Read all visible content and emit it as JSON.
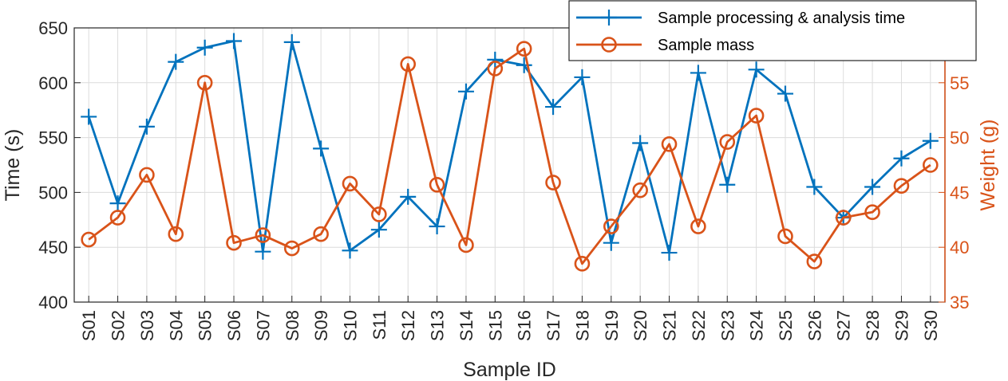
{
  "chart_data": {
    "type": "line",
    "categories": [
      "S01",
      "S02",
      "S03",
      "S04",
      "S05",
      "S06",
      "S07",
      "S08",
      "S09",
      "S10",
      "S11",
      "S12",
      "S13",
      "S14",
      "S15",
      "S16",
      "S17",
      "S18",
      "S19",
      "S20",
      "S21",
      "S22",
      "S23",
      "S24",
      "S25",
      "S26",
      "S27",
      "S28",
      "S29",
      "S30"
    ],
    "xlabel": "Sample ID",
    "ylabel_left": "Time (s)",
    "ylabel_right": "Weight (g)",
    "ylim_left": [
      400,
      650
    ],
    "yticks_left": [
      400,
      450,
      500,
      550,
      600,
      650
    ],
    "ylim_right": [
      35,
      60
    ],
    "yticks_right": [
      35,
      40,
      45,
      50,
      55
    ],
    "grid": true,
    "legend_position": "top-right",
    "series": [
      {
        "name": "Sample processing & analysis time",
        "axis": "left",
        "color": "#0072BD",
        "marker": "plus",
        "values": [
          569,
          490,
          560,
          619,
          632,
          638,
          446,
          637,
          540,
          447,
          466,
          496,
          469,
          592,
          621,
          616,
          578,
          605,
          454,
          545,
          445,
          609,
          507,
          612,
          590,
          505,
          477,
          505,
          531,
          547
        ]
      },
      {
        "name": "Sample mass",
        "axis": "right",
        "color": "#D95319",
        "marker": "circle",
        "values": [
          40.7,
          42.7,
          46.6,
          41.2,
          55.0,
          40.4,
          41.1,
          39.9,
          41.2,
          45.8,
          43.0,
          56.7,
          45.7,
          40.2,
          56.3,
          58.1,
          45.9,
          38.5,
          41.9,
          45.2,
          49.4,
          41.9,
          49.6,
          52.0,
          41.0,
          38.7,
          42.7,
          43.2,
          45.6,
          47.5
        ]
      }
    ]
  }
}
